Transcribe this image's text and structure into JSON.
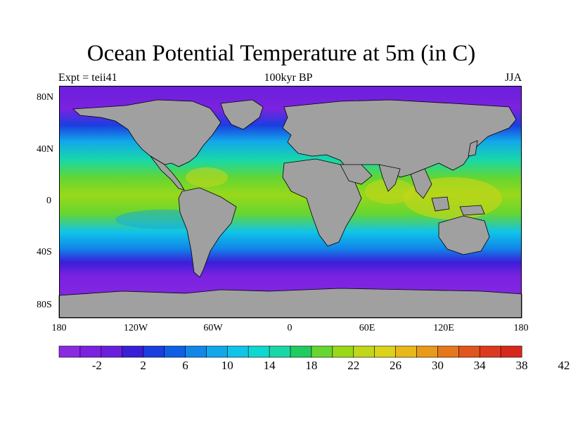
{
  "title": "Ocean Potential Temperature at 5m (in C)",
  "subtitle_left": "Expt = teii41",
  "subtitle_center": "100kyr BP",
  "subtitle_right": "JJA",
  "lat_labels": [
    "80N",
    "40N",
    "0",
    "40S",
    "80S"
  ],
  "lon_labels": [
    "180",
    "120W",
    "60W",
    "0",
    "60E",
    "120E",
    "180"
  ],
  "colorbar": {
    "labels": [
      "-2",
      "2",
      "6",
      "10",
      "14",
      "18",
      "22",
      "26",
      "30",
      "34",
      "38",
      "42"
    ],
    "colors": [
      "#8a2be2",
      "#7b22e0",
      "#6a1fdc",
      "#3a1fd8",
      "#1b3ee0",
      "#1060e6",
      "#1187ea",
      "#12a8ea",
      "#10c4e8",
      "#10d8d0",
      "#18d8a8",
      "#20cc60",
      "#66d630",
      "#9ad81a",
      "#c2d61a",
      "#dcd21a",
      "#e8b81a",
      "#e89a18",
      "#e6781c",
      "#e2551c",
      "#dc3a1e",
      "#d8281e"
    ]
  },
  "colors": {
    "land": "#a0a0a0",
    "coast": "#000000",
    "frame": "#000000"
  }
}
